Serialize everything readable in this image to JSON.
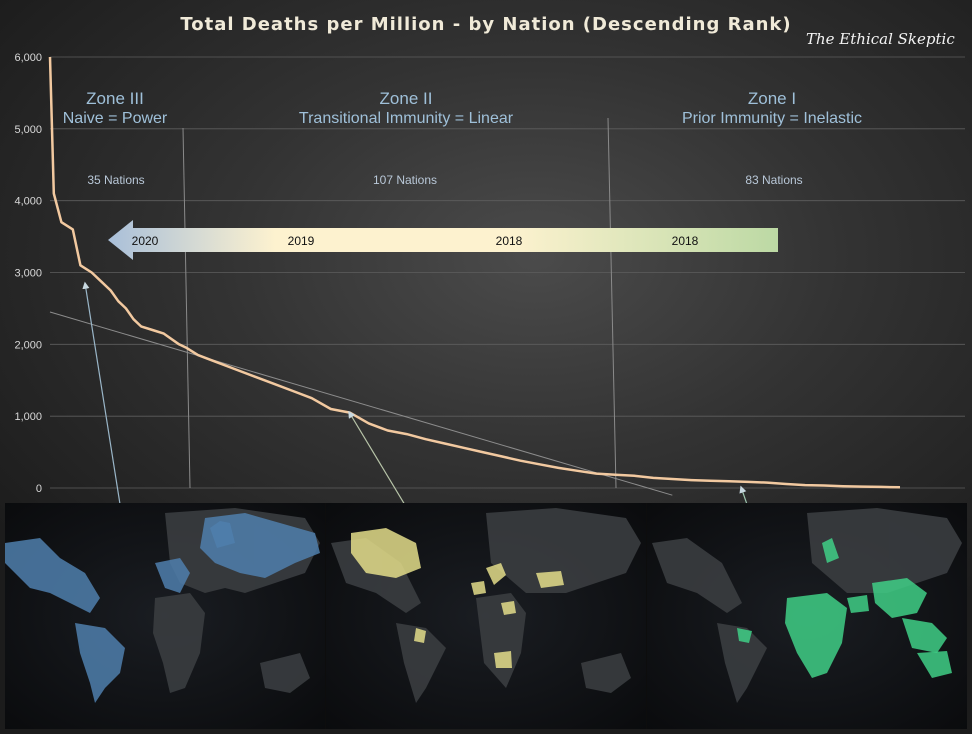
{
  "title": "Total Deaths per Million - by Nation (Descending Rank)",
  "brand": "The Ethical Skeptic",
  "zones": [
    {
      "name": "Zone III",
      "subtitle": "Naive = Power",
      "count": "35 Nations"
    },
    {
      "name": "Zone II",
      "subtitle": "Transitional Immunity = Linear",
      "count": "107 Nations"
    },
    {
      "name": "Zone I",
      "subtitle": "Prior Immunity = Inelastic",
      "count": "83 Nations"
    }
  ],
  "arrow_labels": [
    "2020",
    "2019",
    "2018",
    "2018"
  ],
  "colors": {
    "curve": "#f2c9a0",
    "zone_text": "#9fc0d9",
    "map_blue": "#4f7fad",
    "map_yellow": "#e3dd8a",
    "map_green": "#3fcf86",
    "arrow_start": "#a9bfd9",
    "arrow_mid": "#fdf2cf",
    "arrow_end": "#bcd9a4"
  },
  "chart_data": {
    "type": "line",
    "title": "Total Deaths per Million - by Nation (Descending Rank)",
    "xlabel": "",
    "ylabel": "",
    "ylim": [
      0,
      6000
    ],
    "yticks": [
      "0",
      "1,000",
      "2,000",
      "3,000",
      "4,000",
      "5,000",
      "6,000"
    ],
    "grid": true,
    "x_range": [
      1,
      225
    ],
    "series": [
      {
        "x": [
          1,
          2,
          4,
          7,
          9,
          12,
          14,
          17,
          19,
          21,
          23,
          25,
          28,
          31,
          35,
          37,
          40,
          45,
          50,
          55,
          60,
          65,
          70,
          75,
          80,
          85,
          90,
          95,
          100,
          105,
          110,
          115,
          120,
          125,
          130,
          135,
          140,
          145,
          150,
          155,
          160,
          170,
          175,
          180,
          185,
          190,
          195,
          200,
          205,
          210,
          215,
          220,
          225
        ],
        "values": [
          6000,
          4100,
          3700,
          3600,
          3100,
          3000,
          2900,
          2750,
          2600,
          2500,
          2350,
          2250,
          2200,
          2150,
          2000,
          1950,
          1850,
          1750,
          1650,
          1550,
          1450,
          1350,
          1250,
          1100,
          1050,
          900,
          800,
          750,
          680,
          620,
          560,
          500,
          440,
          380,
          330,
          280,
          240,
          200,
          185,
          170,
          140,
          110,
          100,
          95,
          85,
          75,
          55,
          40,
          35,
          25,
          20,
          15,
          10
        ]
      },
      {
        "name": "",
        "x": [
          1,
          165
        ],
        "values": [
          2450,
          -100
        ]
      }
    ]
  }
}
